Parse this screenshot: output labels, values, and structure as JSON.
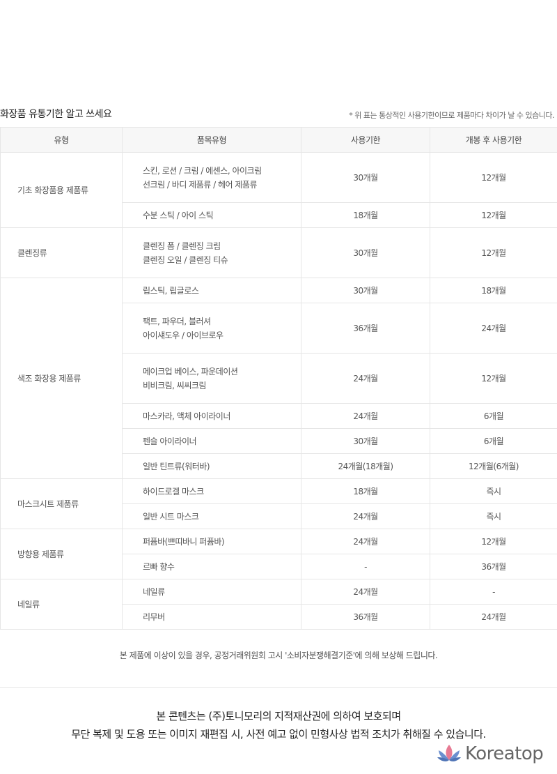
{
  "heading": "화장품 유통기한 알고 쓰세요",
  "note": "* 위 표는 통상적인 사용기한이므로 제품마다 차이가 날 수 있습니다.",
  "table": {
    "headers": [
      "유형",
      "품목유형",
      "사용기한",
      "개봉 후 사용기한"
    ],
    "groups": [
      {
        "category": "기초 화장품용 제품류",
        "rows": [
          {
            "item": [
              "스킨, 로션 / 크림 / 에센스, 아이크림",
              "선크림 / 바디 제품류 / 헤어 제품류"
            ],
            "shelf": "30개월",
            "opened": "12개월"
          },
          {
            "item": [
              "수분 스틱 / 아이 스틱"
            ],
            "shelf": "18개월",
            "opened": "12개월"
          }
        ]
      },
      {
        "category": "클렌징류",
        "rows": [
          {
            "item": [
              "클렌징 폼 / 클렌징 크림",
              "클렌징 오일 / 클렌징 티슈"
            ],
            "shelf": "30개월",
            "opened": "12개월"
          }
        ]
      },
      {
        "category": "색조 화장용 제품류",
        "rows": [
          {
            "item": [
              "립스틱, 립글로스"
            ],
            "shelf": "30개월",
            "opened": "18개월"
          },
          {
            "item": [
              "팩트, 파우더, 블러셔",
              "아이섀도우 / 아이브로우"
            ],
            "shelf": "36개월",
            "opened": "24개월"
          },
          {
            "item": [
              "메이크업 베이스, 파운데이션",
              "비비크림, 씨씨크림"
            ],
            "shelf": "24개월",
            "opened": "12개월"
          },
          {
            "item": [
              "마스카라, 액체 아이라이너"
            ],
            "shelf": "24개월",
            "opened": "6개월"
          },
          {
            "item": [
              "펜슬 아이라이너"
            ],
            "shelf": "30개월",
            "opened": "6개월"
          },
          {
            "item": [
              "일반 틴트류(워터바)"
            ],
            "shelf": "24개월(18개월)",
            "opened": "12개월(6개월)"
          }
        ]
      },
      {
        "category": "마스크시트 제품류",
        "rows": [
          {
            "item": [
              "하이드로겔 마스크"
            ],
            "shelf": "18개월",
            "opened": "즉시"
          },
          {
            "item": [
              "일반 시트 마스크"
            ],
            "shelf": "24개월",
            "opened": "즉시"
          }
        ]
      },
      {
        "category": "방향용 제품류",
        "rows": [
          {
            "item": [
              "퍼퓸바(쁘띠바니 퍼퓸바)"
            ],
            "shelf": "24개월",
            "opened": "12개월"
          },
          {
            "item": [
              "르빠 향수"
            ],
            "shelf": "-",
            "opened": "36개월"
          }
        ]
      },
      {
        "category": "네일류",
        "rows": [
          {
            "item": [
              "네일류"
            ],
            "shelf": "24개월",
            "opened": "-"
          },
          {
            "item": [
              "리무버"
            ],
            "shelf": "36개월",
            "opened": "24개월"
          }
        ]
      }
    ]
  },
  "compensation_note": "본 제품에 이상이 있을 경우, 공정거래위원회 고시 '소비자분쟁해결기준'에 의해 보상해 드립니다.",
  "copyright": {
    "line1": "본 콘텐츠는 (주)토니모리의 지적재산권에 의하여 보호되며",
    "line2": "무단 복제 및 도용 또는 이미지 재편집 시, 사전 예고 없이 민형사상 법적 조치가 취해질 수 있습니다."
  },
  "watermark": {
    "text": "Koreatop",
    "icon": "lotus-icon",
    "icon_colors": [
      "#e77a93",
      "#5b84c4"
    ]
  }
}
